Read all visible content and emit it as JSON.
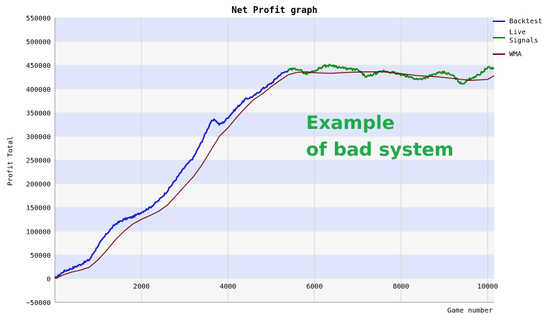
{
  "chart_data": {
    "type": "line",
    "title": "Net Profit graph",
    "xlabel": "Game number",
    "ylabel": "Profit Total",
    "xlim": [
      0,
      10150
    ],
    "ylim": [
      -50000,
      550000
    ],
    "x_ticks": [
      2000,
      4000,
      6000,
      8000,
      10000
    ],
    "y_ticks": [
      -50000,
      0,
      50000,
      100000,
      150000,
      200000,
      250000,
      300000,
      350000,
      400000,
      450000,
      500000,
      550000
    ],
    "grid": true,
    "legend_position": "top-right",
    "annotation": [
      "Example",
      "of bad system"
    ],
    "series": [
      {
        "name": "Backtest",
        "color": "#1c1cc8",
        "x": [
          0,
          200,
          400,
          600,
          800,
          1000,
          1200,
          1400,
          1600,
          1800,
          2000,
          2200,
          2400,
          2600,
          2800,
          3000,
          3200,
          3400,
          3600,
          3700,
          3800,
          3900,
          4000,
          4200,
          4400,
          4600,
          4800,
          5000,
          5200,
          5400
        ],
        "y": [
          0,
          15000,
          22000,
          30000,
          40000,
          70000,
          95000,
          115000,
          125000,
          130000,
          140000,
          150000,
          165000,
          185000,
          210000,
          235000,
          255000,
          290000,
          330000,
          335000,
          325000,
          330000,
          340000,
          360000,
          378000,
          385000,
          400000,
          412000,
          430000,
          440000
        ]
      },
      {
        "name": "Live Signals",
        "color": "#0f8a0f",
        "x": [
          5400,
          5600,
          5800,
          6000,
          6200,
          6400,
          6600,
          6800,
          7000,
          7200,
          7400,
          7600,
          7800,
          8000,
          8200,
          8400,
          8600,
          8800,
          9000,
          9200,
          9400,
          9600,
          9800,
          10000,
          10150
        ],
        "y": [
          440000,
          443000,
          432000,
          438000,
          448000,
          450000,
          445000,
          442000,
          440000,
          425000,
          432000,
          438000,
          435000,
          430000,
          425000,
          420000,
          425000,
          432000,
          435000,
          428000,
          410000,
          422000,
          430000,
          445000,
          443000
        ]
      },
      {
        "name": "WMA",
        "color": "#7a0000",
        "x": [
          0,
          200,
          400,
          600,
          800,
          1000,
          1200,
          1400,
          1600,
          1800,
          2000,
          2200,
          2400,
          2600,
          2800,
          3000,
          3200,
          3400,
          3600,
          3800,
          4000,
          4200,
          4400,
          4600,
          4800,
          5000,
          5200,
          5400,
          5600,
          5800,
          6000,
          6400,
          6800,
          7200,
          7600,
          8000,
          8400,
          8800,
          9200,
          9600,
          10000,
          10150
        ],
        "y": [
          0,
          8000,
          14000,
          18000,
          24000,
          40000,
          60000,
          82000,
          100000,
          115000,
          125000,
          133000,
          142000,
          155000,
          175000,
          195000,
          215000,
          240000,
          270000,
          300000,
          318000,
          340000,
          360000,
          378000,
          390000,
          405000,
          418000,
          430000,
          435000,
          436000,
          434000,
          433000,
          435000,
          436000,
          436000,
          432000,
          428000,
          426000,
          422000,
          418000,
          420000,
          428000
        ]
      }
    ]
  }
}
